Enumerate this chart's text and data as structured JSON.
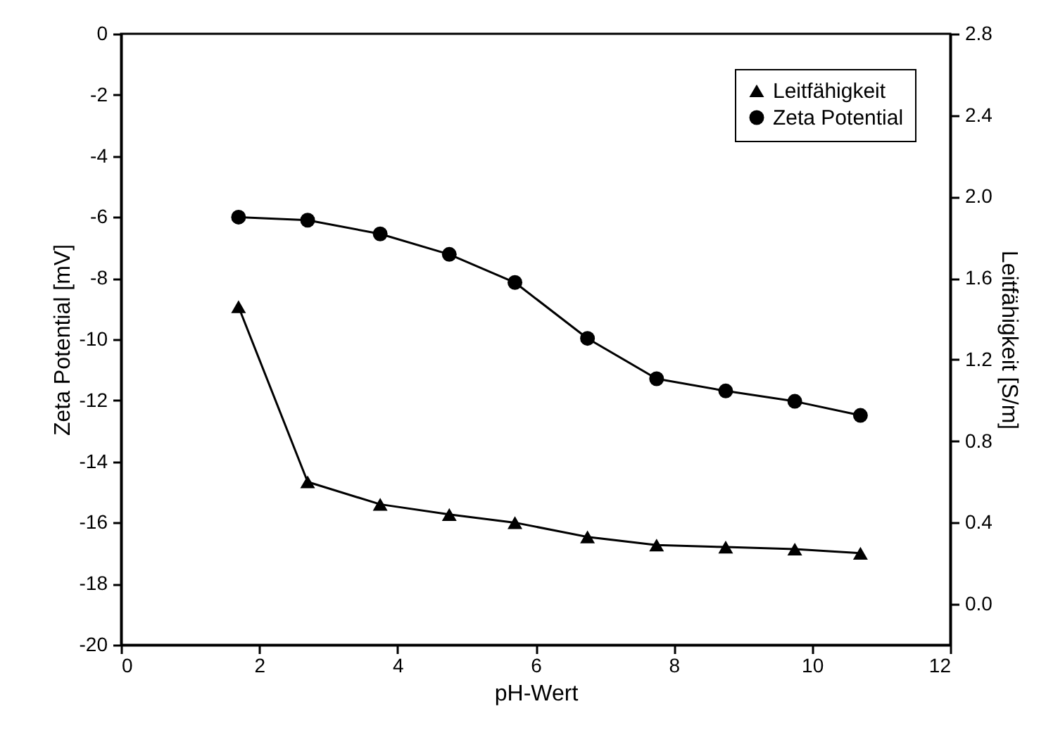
{
  "chart_data": {
    "type": "line",
    "xlabel": "pH-Wert",
    "ylabel": "Zeta Potential [mV]",
    "y2label": "Leitfähigkeit [S/m]",
    "xlim": [
      0,
      12
    ],
    "xticks": [
      0,
      2,
      4,
      6,
      8,
      10,
      12
    ],
    "ylim": [
      -20,
      0
    ],
    "yticks": [
      -20,
      -18,
      -16,
      -14,
      -12,
      -10,
      -8,
      -6,
      -4,
      -2,
      0
    ],
    "y2lim": [
      -0.2,
      2.8
    ],
    "y2ticks": [
      {
        "value": 0,
        "label": "0.0"
      },
      {
        "value": 0.4,
        "label": "0.4"
      },
      {
        "value": 0.8,
        "label": "0.8"
      },
      {
        "value": 1.2,
        "label": "1.2"
      },
      {
        "value": 1.6,
        "label": "1.6"
      },
      {
        "value": 2.0,
        "label": "2.0"
      },
      {
        "value": 2.4,
        "label": "2.4"
      },
      {
        "value": 2.8,
        "label": "2.8"
      }
    ],
    "grid": false,
    "legend": "top right",
    "line_style": "solid",
    "series": [
      {
        "name": "Leitfähigkeit",
        "color": "#000000",
        "marker": "triangle",
        "axis": "y2",
        "x": [
          1.7,
          2.7,
          3.75,
          4.75,
          5.7,
          6.75,
          7.75,
          8.75,
          9.75,
          10.7
        ],
        "values": [
          1.46,
          0.6,
          0.49,
          0.44,
          0.4,
          0.33,
          0.29,
          0.28,
          0.27,
          0.25
        ]
      },
      {
        "name": "Zeta Potential",
        "color": "#000000",
        "marker": "circle",
        "axis": "y",
        "x": [
          1.7,
          2.7,
          3.75,
          4.75,
          5.7,
          6.75,
          7.75,
          8.75,
          9.75,
          10.7
        ],
        "values": [
          -6.0,
          -6.1,
          -6.55,
          -7.22,
          -8.14,
          -9.97,
          -11.29,
          -11.69,
          -12.03,
          -12.49
        ]
      }
    ]
  }
}
